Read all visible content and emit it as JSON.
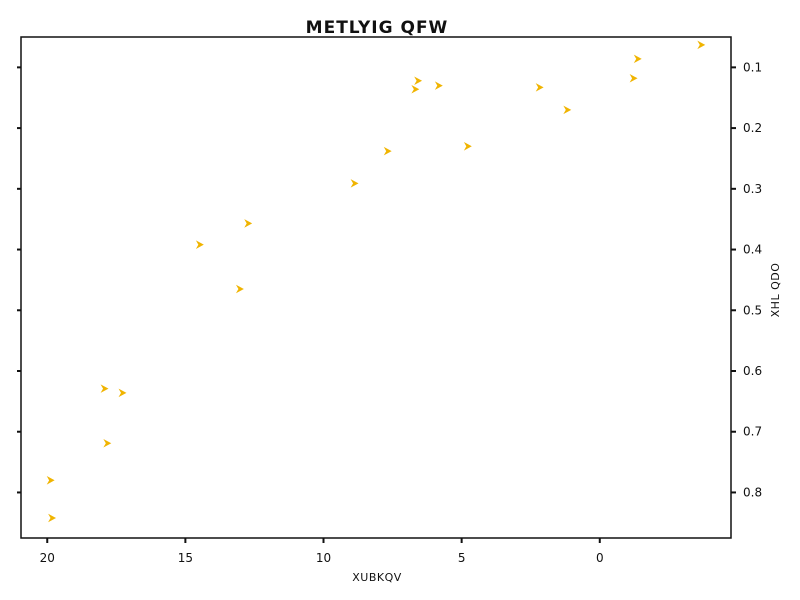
{
  "chart_data": {
    "type": "scatter",
    "title": "METLYIG QFW",
    "xlabel": "XUBKQV",
    "ylabel": "XHL QDO",
    "xlim": [
      20.95,
      -4.75
    ],
    "ylim": [
      0.05,
      0.875
    ],
    "x_inverted": true,
    "y_inverted": true,
    "y_axis_side": "right",
    "x_ticks": [
      20,
      15,
      10,
      5,
      0
    ],
    "x_tick_labels": [
      "20",
      "15",
      "10",
      "5",
      "0"
    ],
    "y_ticks": [
      0.1,
      0.2,
      0.3,
      0.4,
      0.5,
      0.6,
      0.7,
      0.8
    ],
    "y_tick_labels": [
      "0.1",
      "0.2",
      "0.3",
      "0.4",
      "0.5",
      "0.6",
      "0.7",
      "0.8"
    ],
    "grid": false,
    "marker": "tri_right",
    "color": "#f0b400",
    "x": [
      -3.65,
      -1.35,
      -1.2,
      1.2,
      2.2,
      4.8,
      5.85,
      6.6,
      6.7,
      7.7,
      8.9,
      12.75,
      13.05,
      14.5,
      17.3,
      17.85,
      17.95,
      19.85,
      19.9
    ],
    "y": [
      0.063,
      0.086,
      0.118,
      0.17,
      0.133,
      0.23,
      0.13,
      0.122,
      0.136,
      0.238,
      0.291,
      0.357,
      0.465,
      0.392,
      0.636,
      0.719,
      0.629,
      0.842,
      0.78
    ]
  }
}
